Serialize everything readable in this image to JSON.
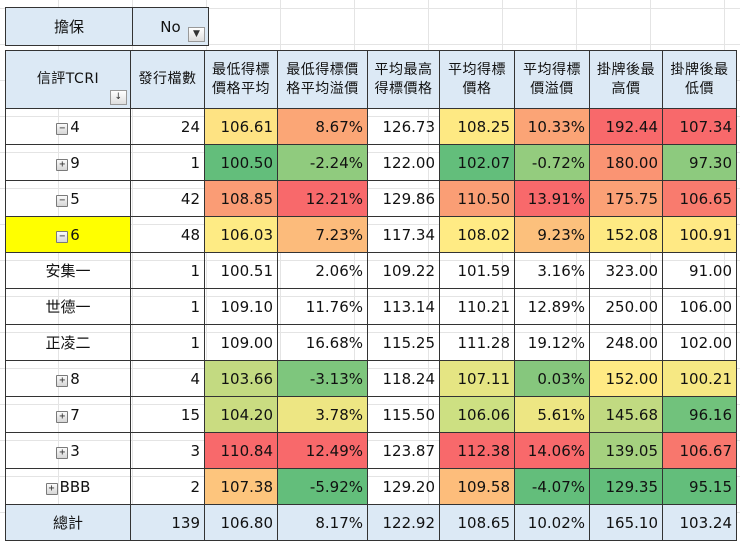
{
  "filter": {
    "label": "擔保",
    "value": "No",
    "dropdown_icon": "filter-funnel-icon"
  },
  "header": {
    "row_label": "信評TCRI",
    "sort_icon": "sort-descending-icon",
    "columns": [
      "發行檔數",
      "最低得標價格平均",
      "最低得標價格平均溢價",
      "平均最高得標價格",
      "平均得標價格",
      "平均得標價溢價",
      "掛牌後最高價",
      "掛牌後最低價"
    ],
    "columns_lines": [
      [
        "發行檔數"
      ],
      [
        "最低得標",
        "價格平均"
      ],
      [
        "最低得標價",
        "格平均溢價"
      ],
      [
        "平均最高",
        "得標價格"
      ],
      [
        "平均得標",
        "價格"
      ],
      [
        "平均得標",
        "價溢價"
      ],
      [
        "掛牌後最",
        "高價"
      ],
      [
        "掛牌後最",
        "低價"
      ]
    ]
  },
  "colors": {
    "header_bg": "#dce9f5",
    "selected_bg": "#ffff00",
    "red": "#f8696b",
    "orange": "#fba276",
    "yellow": "#ffeb84",
    "green": "#63be7b"
  },
  "rows": [
    {
      "label": "4",
      "expander": "minus",
      "count": "24",
      "values": [
        "106.61",
        "8.67%",
        "126.73",
        "108.25",
        "10.33%",
        "192.44",
        "107.34"
      ],
      "bg": [
        "#fee383",
        "#fba676",
        "",
        "#fee983",
        "#fba476",
        "#f8696b",
        "#f8696b"
      ]
    },
    {
      "label": "9",
      "expander": "plus",
      "count": "1",
      "values": [
        "100.50",
        "-2.24%",
        "122.00",
        "102.07",
        "-0.72%",
        "180.00",
        "97.30"
      ],
      "bg": [
        "#63be7b",
        "#90cb7e",
        "",
        "#63be7b",
        "#94cc7e",
        "#fa9473",
        "#8dca7e"
      ]
    },
    {
      "label": "5",
      "expander": "minus",
      "count": "42",
      "values": [
        "108.85",
        "12.21%",
        "129.86",
        "110.50",
        "13.91%",
        "175.75",
        "106.65"
      ],
      "bg": [
        "#fa9c75",
        "#f8696b",
        "",
        "#fa9e75",
        "#f8696b",
        "#fba176",
        "#f97b6e"
      ]
    },
    {
      "label": "6",
      "expander": "minus",
      "count": "48",
      "selected": true,
      "values": [
        "106.03",
        "7.23%",
        "117.34",
        "108.02",
        "9.23%",
        "152.08",
        "100.91"
      ],
      "bg": [
        "#feeb84",
        "#fcbb7b",
        "",
        "#ffeb84",
        "#fcc07c",
        "#feea83",
        "#ffe984"
      ]
    },
    {
      "label": "安集一",
      "expander": "",
      "count": "1",
      "values": [
        "100.51",
        "2.06%",
        "109.22",
        "101.59",
        "3.16%",
        "323.00",
        "91.00"
      ],
      "bg": [
        "",
        "",
        "",
        "",
        "",
        "",
        ""
      ]
    },
    {
      "label": "世德一",
      "expander": "",
      "count": "1",
      "values": [
        "109.10",
        "11.76%",
        "113.14",
        "110.21",
        "12.89%",
        "250.00",
        "106.00"
      ],
      "bg": [
        "",
        "",
        "",
        "",
        "",
        "",
        ""
      ]
    },
    {
      "label": "正凌二",
      "expander": "",
      "count": "1",
      "values": [
        "109.00",
        "16.68%",
        "115.25",
        "111.28",
        "19.12%",
        "248.00",
        "102.00"
      ],
      "bg": [
        "",
        "",
        "",
        "",
        "",
        "",
        ""
      ]
    },
    {
      "label": "8",
      "expander": "plus",
      "count": "4",
      "values": [
        "103.66",
        "-3.13%",
        "118.24",
        "107.11",
        "0.03%",
        "152.00",
        "100.21"
      ],
      "bg": [
        "#c3da81",
        "#7ec67d",
        "",
        "#e5e583",
        "#86c77d",
        "#ffea84",
        "#f6e883"
      ]
    },
    {
      "label": "7",
      "expander": "plus",
      "count": "15",
      "values": [
        "104.20",
        "3.78%",
        "115.50",
        "106.06",
        "5.61%",
        "145.68",
        "96.16"
      ],
      "bg": [
        "#cadc81",
        "#ede683",
        "",
        "#cde082",
        "#ede683",
        "#c1da81",
        "#71c27c"
      ]
    },
    {
      "label": "3",
      "expander": "plus",
      "count": "3",
      "values": [
        "110.84",
        "12.49%",
        "123.87",
        "112.38",
        "14.06%",
        "139.05",
        "106.67"
      ],
      "bg": [
        "#f8696b",
        "#f8696b",
        "",
        "#f8696b",
        "#f8696b",
        "#a5d17f",
        "#f8776d"
      ]
    },
    {
      "label": "BBB",
      "expander": "plus",
      "count": "2",
      "values": [
        "107.38",
        "-5.92%",
        "129.20",
        "109.58",
        "-4.07%",
        "129.35",
        "95.15"
      ],
      "bg": [
        "#fdc57d",
        "#63be7b",
        "",
        "#fdbd7b",
        "#63be7b",
        "#63be7b",
        "#63be7b"
      ]
    }
  ],
  "total": {
    "label": "總計",
    "count": "139",
    "values": [
      "106.80",
      "8.17%",
      "122.92",
      "108.65",
      "10.02%",
      "165.10",
      "103.24"
    ]
  }
}
